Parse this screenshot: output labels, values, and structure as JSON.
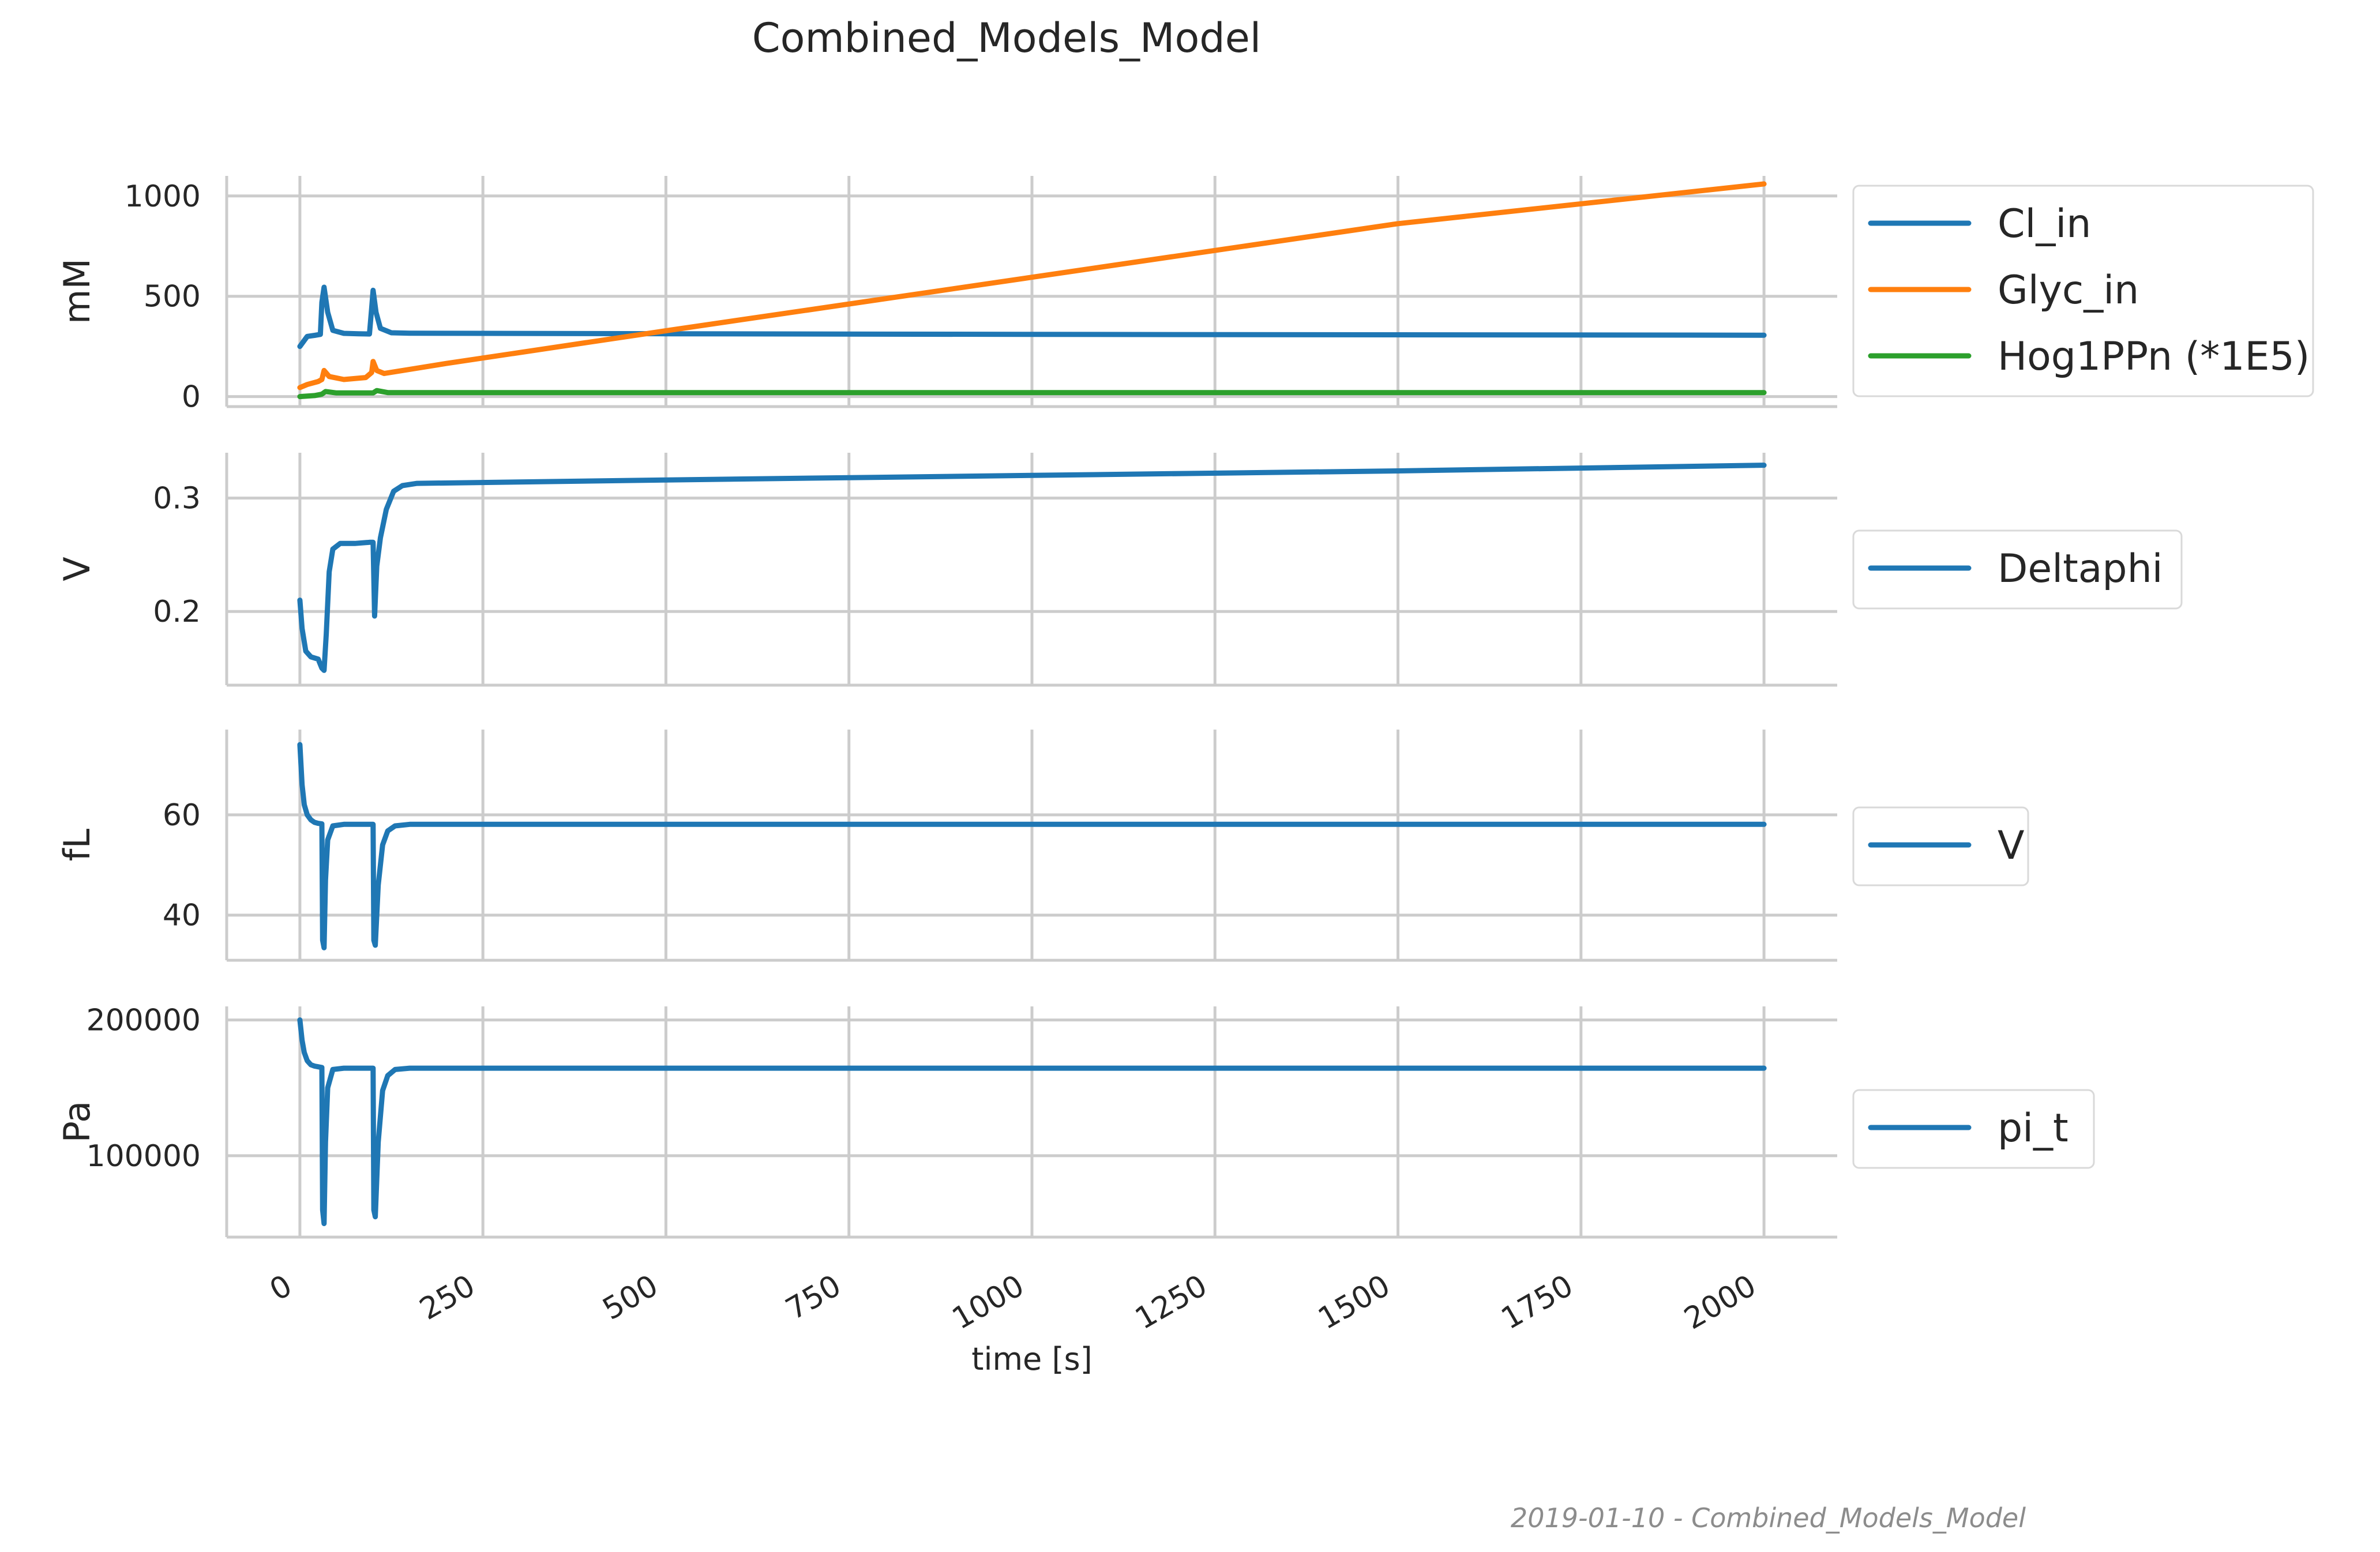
{
  "title": "Combined_Models_Model",
  "xlabel": "time [s]",
  "footer": "2019-01-10 - Combined_Models_Model",
  "chart_data": [
    {
      "type": "line",
      "ylabel": "mM",
      "xlim": [
        -100,
        2100
      ],
      "ylim": [
        -50,
        1100
      ],
      "yticks": [
        0,
        500,
        1000
      ],
      "ytick_labels": [
        "0",
        "500",
        "1000"
      ],
      "legend_position": "outside-right",
      "series": [
        {
          "name": "Cl_in",
          "color": "#1f77b4",
          "x": [
            0,
            10,
            20,
            28,
            30,
            33,
            38,
            45,
            60,
            80,
            95,
            98,
            100,
            104,
            110,
            125,
            150,
            250,
            500,
            1000,
            1500,
            2000
          ],
          "y": [
            250,
            300,
            305,
            310,
            470,
            545,
            420,
            330,
            315,
            313,
            312,
            440,
            530,
            420,
            340,
            318,
            316,
            315,
            313,
            310,
            308,
            306
          ]
        },
        {
          "name": "Glyc_in",
          "color": "#ff7f0e",
          "x": [
            0,
            10,
            25,
            30,
            33,
            40,
            60,
            90,
            98,
            100,
            105,
            115,
            200,
            500,
            1000,
            1500,
            2000
          ],
          "y": [
            45,
            60,
            75,
            85,
            130,
            100,
            85,
            95,
            120,
            175,
            130,
            115,
            165,
            328,
            595,
            862,
            1060
          ]
        },
        {
          "name": "Hog1PPn (*1E5)",
          "color": "#2ca02c",
          "x": [
            0,
            20,
            30,
            35,
            50,
            100,
            105,
            120,
            500,
            1000,
            2000
          ],
          "y": [
            0,
            5,
            12,
            25,
            18,
            18,
            30,
            20,
            20,
            20,
            20
          ]
        }
      ]
    },
    {
      "type": "line",
      "ylabel": "V",
      "xlim": [
        -100,
        2100
      ],
      "ylim": [
        0.135,
        0.34
      ],
      "yticks": [
        0.2,
        0.3
      ],
      "ytick_labels": [
        "0.2",
        "0.3"
      ],
      "legend_position": "outside-right",
      "series": [
        {
          "name": "Deltaphi",
          "color": "#1f77b4",
          "x": [
            0,
            3,
            8,
            15,
            25,
            30,
            33,
            36,
            40,
            45,
            55,
            75,
            95,
            100,
            102,
            105,
            110,
            118,
            128,
            140,
            160,
            500,
            1000,
            1500,
            2000
          ],
          "y": [
            0.21,
            0.185,
            0.165,
            0.16,
            0.158,
            0.15,
            0.148,
            0.18,
            0.235,
            0.255,
            0.26,
            0.26,
            0.261,
            0.261,
            0.196,
            0.24,
            0.265,
            0.29,
            0.306,
            0.311,
            0.313,
            0.316,
            0.32,
            0.324,
            0.329
          ]
        }
      ]
    },
    {
      "type": "line",
      "ylabel": "fL",
      "xlim": [
        -100,
        2100
      ],
      "ylim": [
        31,
        77
      ],
      "yticks": [
        40,
        60
      ],
      "ytick_labels": [
        "40",
        "60"
      ],
      "legend_position": "outside-right",
      "series": [
        {
          "name": "V",
          "color": "#1f77b4",
          "x": [
            0,
            3,
            6,
            10,
            15,
            20,
            25,
            30,
            31,
            33,
            35,
            38,
            45,
            60,
            80,
            100,
            101,
            103,
            107,
            113,
            120,
            130,
            150,
            200,
            500,
            1000,
            1500,
            2000
          ],
          "y": [
            74,
            66,
            62,
            60,
            59,
            58.5,
            58.3,
            58.2,
            35,
            33.5,
            47,
            55,
            57.8,
            58.1,
            58.1,
            58.1,
            35,
            34,
            46,
            54,
            56.8,
            57.8,
            58.1,
            58.1,
            58.1,
            58.1,
            58.1,
            58.1
          ]
        }
      ]
    },
    {
      "type": "line",
      "ylabel": "Pa",
      "xlim": [
        -100,
        2100
      ],
      "ylim": [
        40000,
        210000
      ],
      "yticks": [
        100000,
        200000
      ],
      "ytick_labels": [
        "100000",
        "200000"
      ],
      "legend_position": "outside-right",
      "series": [
        {
          "name": "pi_t",
          "color": "#1f77b4",
          "x": [
            0,
            3,
            6,
            10,
            15,
            20,
            25,
            30,
            31,
            33,
            35,
            38,
            45,
            60,
            80,
            100,
            101,
            103,
            107,
            113,
            120,
            130,
            150,
            200,
            500,
            1000,
            1500,
            2000
          ],
          "y": [
            200000,
            185000,
            176000,
            170000,
            167000,
            166000,
            165500,
            165000,
            60000,
            50000,
            110000,
            150000,
            163500,
            164500,
            164500,
            164500,
            60000,
            55000,
            110000,
            148000,
            159000,
            163500,
            164500,
            164500,
            164500,
            164500,
            164500,
            164500
          ]
        }
      ]
    }
  ],
  "xaxis": {
    "ticks": [
      0,
      250,
      500,
      750,
      1000,
      1250,
      1500,
      1750,
      2000
    ],
    "tick_labels": [
      "0",
      "250",
      "500",
      "750",
      "1000",
      "1250",
      "1500",
      "1750",
      "2000"
    ]
  }
}
